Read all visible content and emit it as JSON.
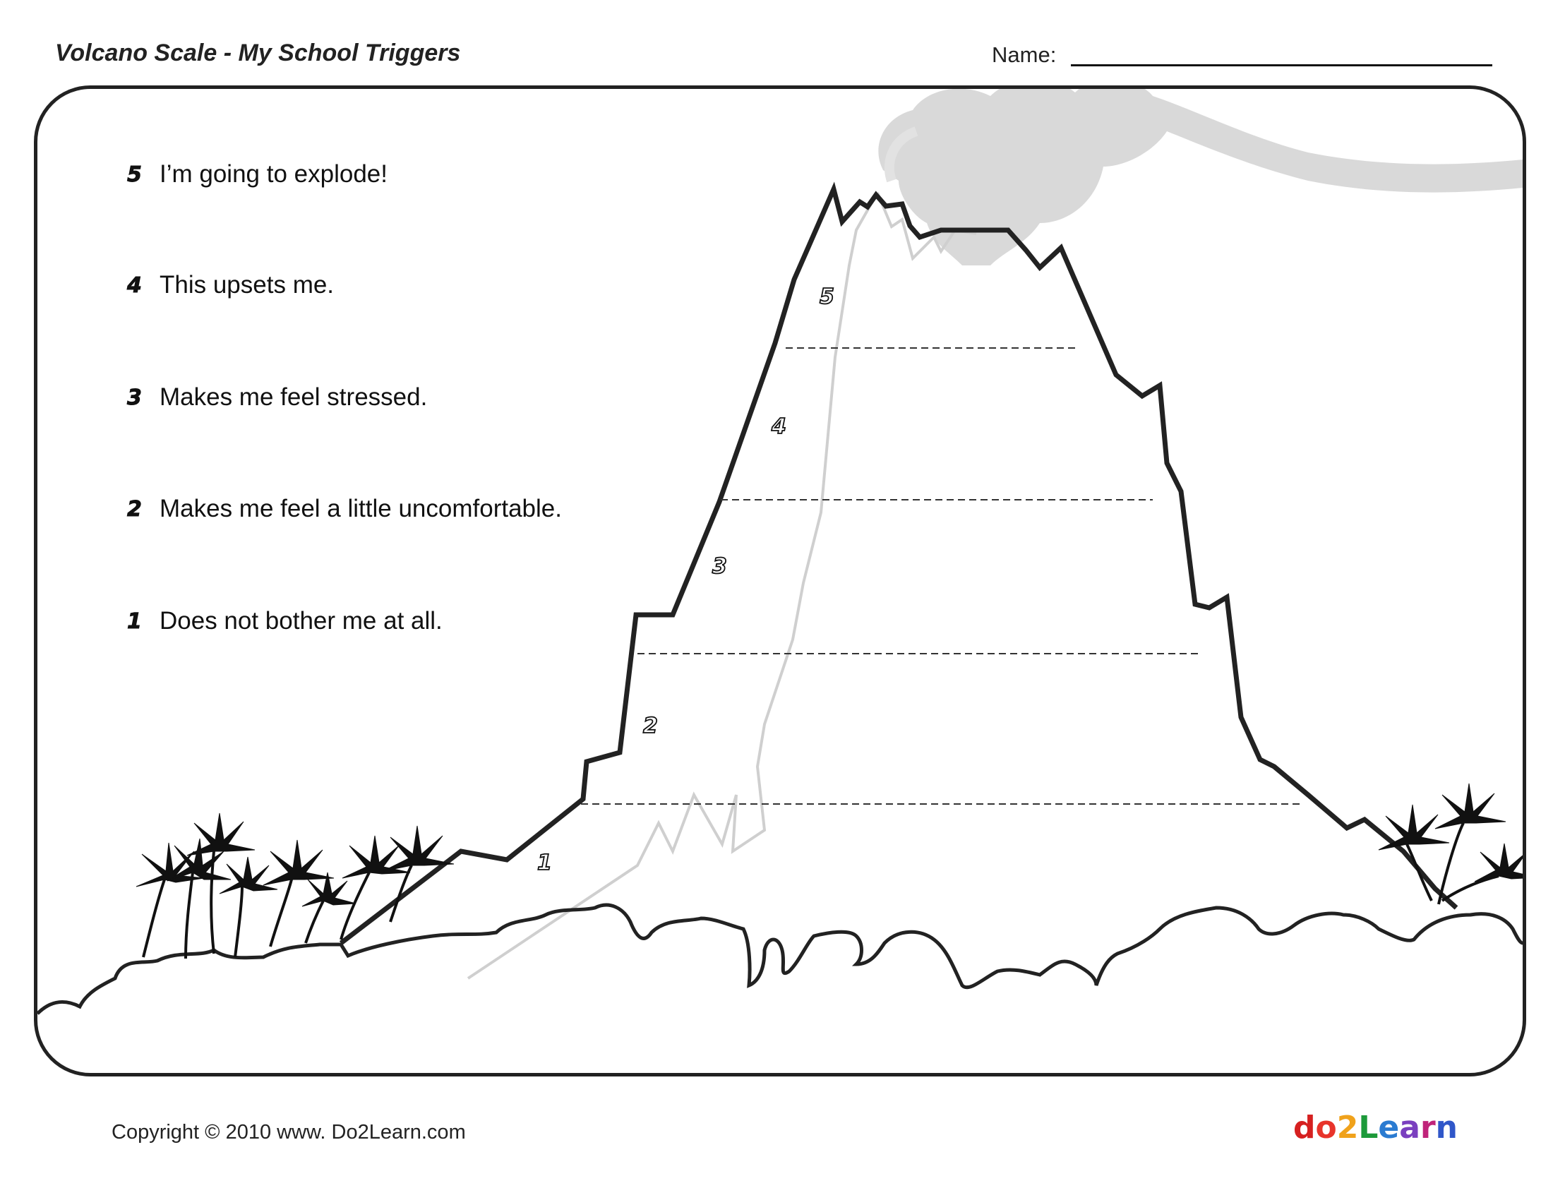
{
  "header": {
    "title": "Volcano Scale - My School Triggers",
    "name_label": "Name:"
  },
  "legend": [
    {
      "number": "5",
      "text": "I’m going to explode!"
    },
    {
      "number": "4",
      "text": "This upsets me."
    },
    {
      "number": "3",
      "text": "Makes me feel stressed."
    },
    {
      "number": "2",
      "text": "Makes me feel a little uncomfortable."
    },
    {
      "number": "1",
      "text": "Does not bother me at all."
    }
  ],
  "volcano_levels": [
    "5",
    "4",
    "3",
    "2",
    "1"
  ],
  "footer": {
    "copyright": "Copyright © 2010 www. Do2Learn.com",
    "logo": {
      "letters": [
        "d",
        "o",
        "2",
        "L",
        "e",
        "a",
        "r",
        "n"
      ],
      "colors": [
        "#d62020",
        "#e8342b",
        "#f0a21b",
        "#1d9a3a",
        "#2a7bd1",
        "#7a3fbf",
        "#c0247a",
        "#3057c9"
      ]
    }
  }
}
